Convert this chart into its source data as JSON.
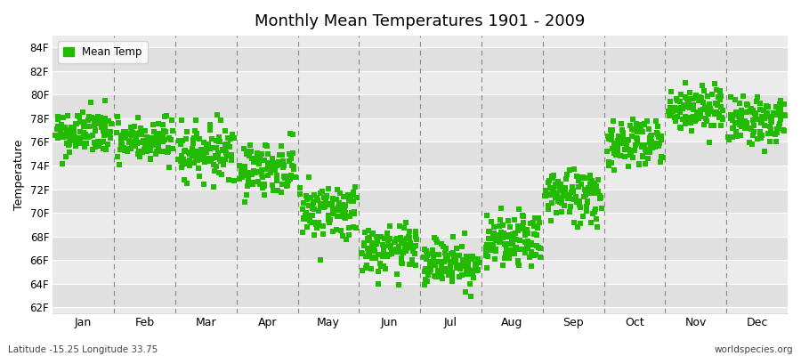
{
  "title": "Monthly Mean Temperatures 1901 - 2009",
  "ylabel": "Temperature",
  "xlabel_months": [
    "Jan",
    "Feb",
    "Mar",
    "Apr",
    "May",
    "Jun",
    "Jul",
    "Aug",
    "Sep",
    "Oct",
    "Nov",
    "Dec"
  ],
  "yticks": [
    62,
    64,
    66,
    68,
    70,
    72,
    74,
    76,
    78,
    80,
    82,
    84
  ],
  "ytick_labels": [
    "62F",
    "64F",
    "66F",
    "68F",
    "70F",
    "72F",
    "74F",
    "76F",
    "78F",
    "80F",
    "82F",
    "84F"
  ],
  "ylim": [
    61.5,
    85.0
  ],
  "marker_color": "#22bb00",
  "marker_size": 4,
  "background_color": "#ffffff",
  "plot_bg_light": "#ebebeb",
  "plot_bg_dark": "#e0e0e0",
  "grid_line_color": "#ffffff",
  "dashed_line_color": "#888888",
  "legend_label": "Mean Temp",
  "footnote_left": "Latitude -15.25 Longitude 33.75",
  "footnote_right": "worldspecies.org",
  "monthly_mean": [
    76.8,
    76.0,
    75.2,
    73.8,
    70.2,
    66.8,
    65.8,
    67.5,
    71.5,
    76.0,
    78.8,
    77.8
  ],
  "monthly_std": [
    1.0,
    1.0,
    1.1,
    1.1,
    1.2,
    1.0,
    1.0,
    1.1,
    1.2,
    1.1,
    1.0,
    1.0
  ],
  "n_years": 109,
  "random_seed": 42
}
